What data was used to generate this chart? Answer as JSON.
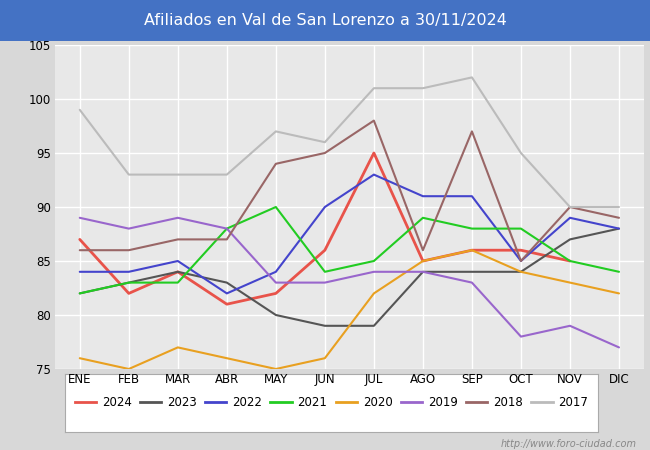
{
  "title": "Afiliados en Val de San Lorenzo a 30/11/2024",
  "title_bg_color": "#4472c4",
  "title_text_color": "white",
  "months": [
    "ENE",
    "FEB",
    "MAR",
    "ABR",
    "MAY",
    "JUN",
    "JUL",
    "AGO",
    "SEP",
    "OCT",
    "NOV",
    "DIC"
  ],
  "ylim": [
    75,
    105
  ],
  "yticks": [
    75,
    80,
    85,
    90,
    95,
    100,
    105
  ],
  "series": {
    "2024": {
      "color": "#e8534a",
      "linewidth": 2.0,
      "data": [
        87,
        82,
        84,
        81,
        82,
        86,
        95,
        85,
        86,
        86,
        85,
        null
      ]
    },
    "2023": {
      "color": "#555555",
      "linewidth": 1.5,
      "data": [
        82,
        83,
        84,
        83,
        80,
        79,
        79,
        84,
        84,
        84,
        87,
        88
      ]
    },
    "2022": {
      "color": "#4444cc",
      "linewidth": 1.5,
      "data": [
        84,
        84,
        85,
        82,
        84,
        90,
        93,
        91,
        91,
        85,
        89,
        88
      ]
    },
    "2021": {
      "color": "#22cc22",
      "linewidth": 1.5,
      "data": [
        82,
        83,
        83,
        88,
        90,
        84,
        85,
        89,
        88,
        88,
        85,
        84
      ]
    },
    "2020": {
      "color": "#e8a020",
      "linewidth": 1.5,
      "data": [
        76,
        75,
        77,
        76,
        75,
        76,
        82,
        85,
        86,
        84,
        83,
        82
      ]
    },
    "2019": {
      "color": "#9966cc",
      "linewidth": 1.5,
      "data": [
        89,
        88,
        89,
        88,
        83,
        83,
        84,
        84,
        83,
        78,
        79,
        77
      ]
    },
    "2018": {
      "color": "#996666",
      "linewidth": 1.5,
      "data": [
        86,
        86,
        87,
        87,
        94,
        95,
        98,
        86,
        97,
        85,
        90,
        89
      ]
    },
    "2017": {
      "color": "#bbbbbb",
      "linewidth": 1.5,
      "data": [
        99,
        93,
        93,
        93,
        97,
        96,
        101,
        101,
        102,
        95,
        90,
        90
      ]
    }
  },
  "legend_order": [
    "2024",
    "2023",
    "2022",
    "2021",
    "2020",
    "2019",
    "2018",
    "2017"
  ],
  "watermark": "http://www.foro-ciudad.com",
  "bg_color": "#d8d8d8",
  "plot_bg_color": "#e8e8e8",
  "grid_color": "white"
}
